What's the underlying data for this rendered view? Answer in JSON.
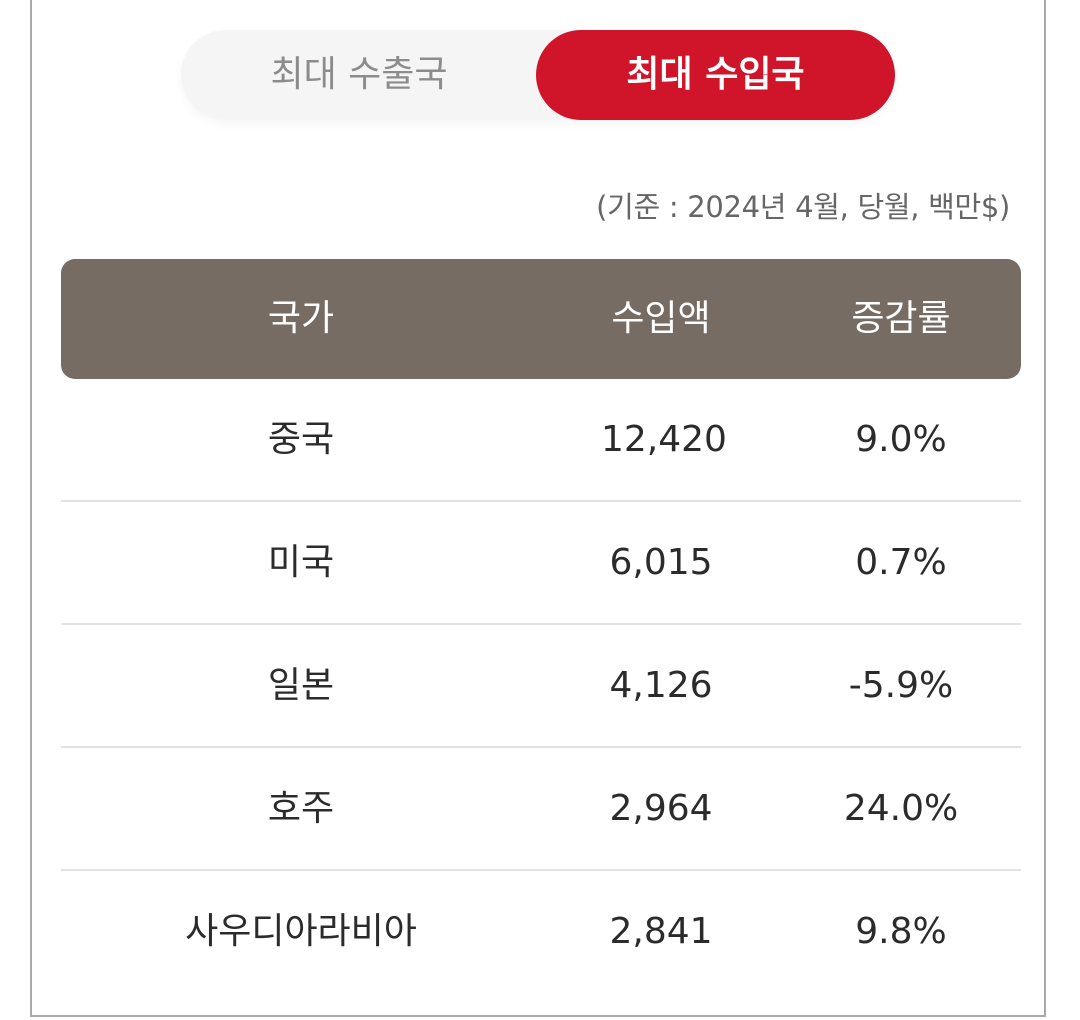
{
  "toggle": {
    "export_label": "최대 수출국",
    "import_label": "최대 수입국",
    "selected": "import"
  },
  "note": "(기준 : 2024년 4월, 당월, 백만$)",
  "table": {
    "headers": {
      "country": "국가",
      "amount": "수입액",
      "rate": "증감률"
    },
    "rows": [
      {
        "country": "중국",
        "amount": "12,420",
        "rate": "9.0%"
      },
      {
        "country": "미국",
        "amount": "6,015",
        "rate": "0.7%"
      },
      {
        "country": "일본",
        "amount": "4,126",
        "rate": "-5.9%"
      },
      {
        "country": "호주",
        "amount": "2,964",
        "rate": "24.0%"
      },
      {
        "country": "사우디아라비아",
        "amount": "2,841",
        "rate": "9.8%"
      }
    ]
  },
  "colors": {
    "accent_red": "#d0142a",
    "header_brown": "#776c64"
  }
}
